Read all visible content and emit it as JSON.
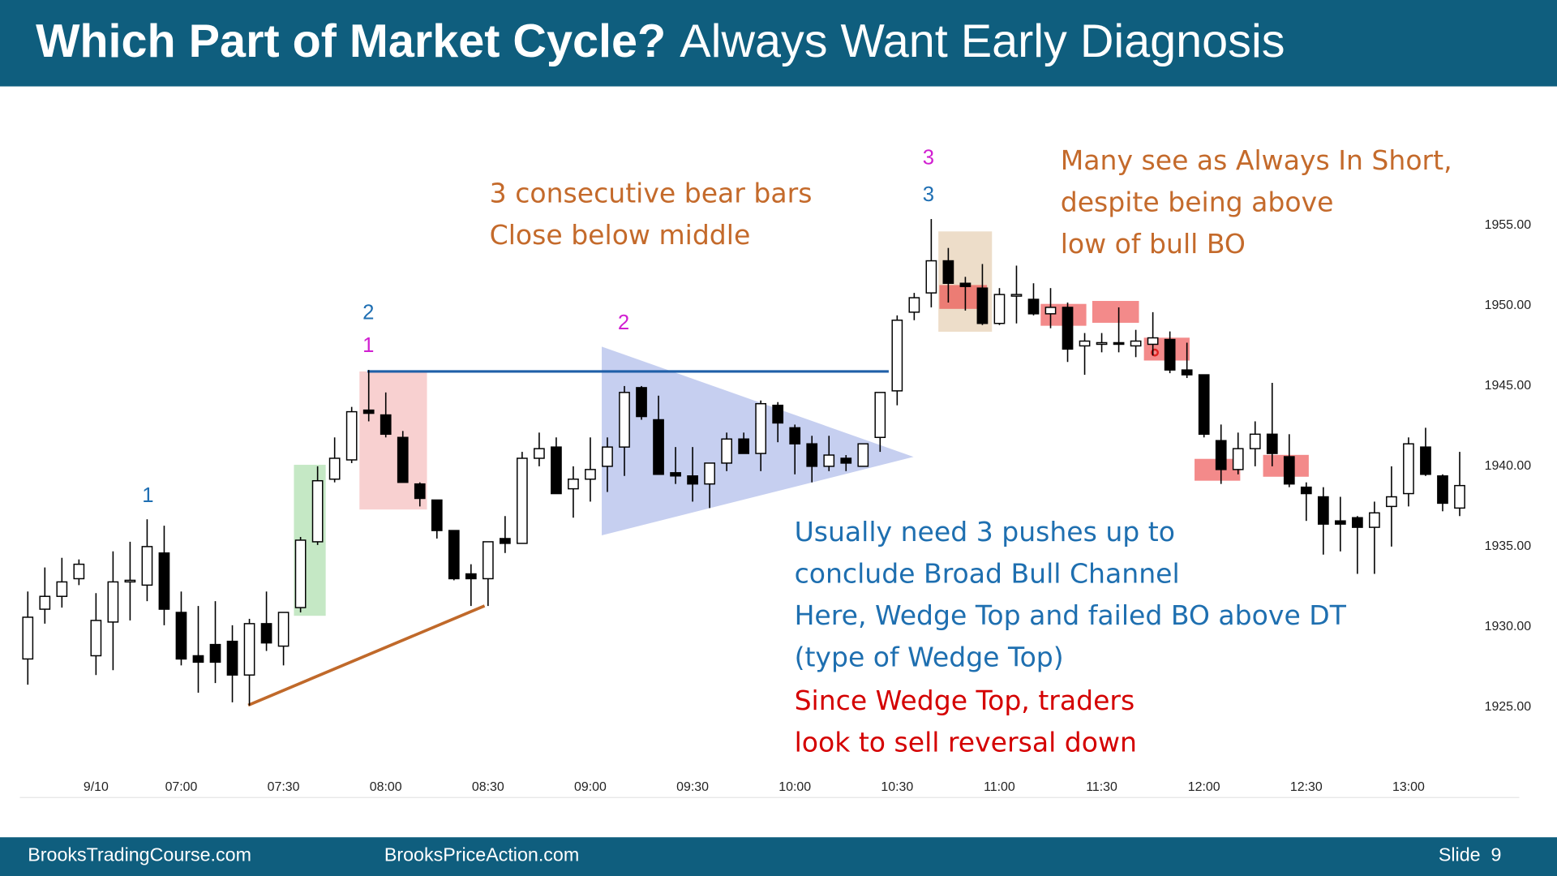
{
  "chart_data": {
    "type": "candlestick",
    "title": {
      "bold": "Which Part of Market Cycle?",
      "regular": "Always Want Early Diagnosis"
    },
    "categories": [
      null,
      null,
      null,
      null,
      "9/10",
      null,
      null,
      null,
      null,
      "07:00",
      null,
      null,
      null,
      null,
      null,
      "07:30",
      null,
      null,
      null,
      null,
      null,
      "08:00",
      null,
      null,
      null,
      null,
      null,
      "08:30",
      null,
      null,
      null,
      null,
      null,
      "09:00",
      null,
      null,
      null,
      null,
      null,
      "09:30",
      null,
      null,
      null,
      null,
      null,
      "10:00",
      null,
      null,
      null,
      null,
      null,
      "10:30",
      null,
      null,
      null,
      null,
      null,
      "11:00",
      null,
      null,
      null,
      null,
      null,
      "11:30",
      null,
      null,
      null,
      null,
      null,
      "12:00",
      null,
      null,
      null,
      null,
      null,
      "12:30",
      null,
      null,
      null,
      null,
      null,
      "13:00",
      null,
      null,
      null
    ],
    "open": [
      1928.0,
      1931.1,
      1931.9,
      1933.0,
      1928.2,
      1930.3,
      1932.8,
      1932.6,
      1934.6,
      1930.9,
      1928.2,
      1928.9,
      1929.1,
      1927.0,
      1930.2,
      1928.8,
      1931.2,
      1935.3,
      1939.2,
      1940.4,
      1943.5,
      1943.2,
      1941.8,
      1938.9,
      1937.9,
      1936.0,
      1933.3,
      1933.0,
      1935.5,
      1935.2,
      1940.5,
      1941.2,
      1938.6,
      1939.2,
      1940.0,
      1941.2,
      1944.9,
      1942.9,
      1939.6,
      1939.4,
      1938.9,
      1940.2,
      1941.7,
      1940.8,
      1943.8,
      1942.4,
      1941.4,
      1940.0,
      1940.5,
      1940.0,
      1941.8,
      1944.7,
      1949.6,
      1950.8,
      1952.8,
      1951.4,
      1951.1,
      1948.9,
      1950.6,
      1950.4,
      1949.5,
      1949.9,
      1947.5,
      1947.6,
      1947.7,
      1947.5,
      1947.6,
      1947.9,
      1946.0,
      1945.7,
      1941.6,
      1939.8,
      1941.1,
      1942.0,
      1940.6,
      1938.7,
      1938.1,
      1936.6,
      1936.8,
      1936.2,
      1937.5,
      1938.3,
      1941.2,
      1939.4,
      1937.4
    ],
    "high": [
      1932.2,
      1933.7,
      1934.3,
      1934.2,
      1932.1,
      1934.7,
      1935.3,
      1936.7,
      1936.3,
      1932.2,
      1931.3,
      1931.6,
      1930.1,
      1930.5,
      1932.2,
      1930.9,
      1935.6,
      1940.0,
      1941.8,
      1943.7,
      1946.0,
      1944.6,
      1942.2,
      1939.0,
      1937.9,
      1936.0,
      1933.9,
      1935.3,
      1936.9,
      1940.9,
      1942.1,
      1941.8,
      1940.0,
      1941.8,
      1941.8,
      1945.0,
      1945.0,
      1944.4,
      1941.2,
      1941.2,
      1940.2,
      1942.1,
      1942.1,
      1944.1,
      1944.0,
      1942.6,
      1941.9,
      1941.9,
      1940.7,
      1941.4,
      1944.6,
      1949.4,
      1950.8,
      1955.4,
      1953.6,
      1951.8,
      1952.6,
      1951.1,
      1952.5,
      1951.4,
      1951.1,
      1950.2,
      1948.3,
      1948.3,
      1949.9,
      1948.5,
      1949.6,
      1948.4,
      1947.7,
      1945.7,
      1942.6,
      1942.1,
      1942.8,
      1945.2,
      1942.0,
      1939.0,
      1938.7,
      1938.1,
      1936.9,
      1937.8,
      1940.0,
      1941.8,
      1942.4,
      1939.5,
      1940.9
    ],
    "low": [
      1926.4,
      1930.2,
      1931.2,
      1932.6,
      1927.0,
      1927.3,
      1930.4,
      1931.6,
      1930.1,
      1927.6,
      1925.9,
      1926.5,
      1925.3,
      1925.1,
      1928.5,
      1927.6,
      1930.9,
      1935.1,
      1939.0,
      1940.2,
      1942.8,
      1941.8,
      1939.0,
      1937.5,
      1935.5,
      1932.9,
      1931.3,
      1931.3,
      1934.6,
      1935.2,
      1940.0,
      1938.3,
      1936.8,
      1937.8,
      1938.4,
      1939.4,
      1942.9,
      1939.5,
      1938.9,
      1937.8,
      1937.4,
      1939.7,
      1940.8,
      1939.7,
      1941.5,
      1939.5,
      1939.0,
      1939.7,
      1939.7,
      1940.0,
      1940.9,
      1943.8,
      1949.1,
      1949.9,
      1950.2,
      1949.7,
      1948.8,
      1948.8,
      1948.9,
      1949.4,
      1948.6,
      1946.5,
      1945.7,
      1947.1,
      1947.1,
      1946.8,
      1946.9,
      1945.8,
      1945.5,
      1941.8,
      1938.9,
      1939.5,
      1940.0,
      1940.0,
      1938.7,
      1936.6,
      1934.5,
      1934.7,
      1933.3,
      1933.3,
      1935.0,
      1937.5,
      1939.4,
      1937.2,
      1936.9
    ],
    "close": [
      1930.6,
      1931.9,
      1932.8,
      1933.9,
      1930.4,
      1932.8,
      1932.9,
      1935.0,
      1931.1,
      1928.0,
      1927.8,
      1927.8,
      1927.0,
      1930.2,
      1929.0,
      1930.9,
      1935.4,
      1939.1,
      1940.5,
      1943.4,
      1943.3,
      1942.0,
      1939.0,
      1938.0,
      1936.0,
      1933.0,
      1933.0,
      1935.3,
      1935.2,
      1940.5,
      1941.1,
      1938.3,
      1939.2,
      1939.8,
      1941.2,
      1944.6,
      1943.1,
      1939.5,
      1939.4,
      1938.9,
      1940.2,
      1941.7,
      1940.8,
      1943.9,
      1942.7,
      1941.4,
      1940.0,
      1940.7,
      1940.2,
      1941.4,
      1944.6,
      1949.1,
      1950.5,
      1952.8,
      1951.4,
      1951.2,
      1948.9,
      1950.7,
      1950.7,
      1949.5,
      1949.9,
      1947.3,
      1947.8,
      1947.7,
      1947.6,
      1947.8,
      1948.0,
      1946.0,
      1945.7,
      1942.0,
      1939.8,
      1941.1,
      1942.0,
      1940.8,
      1938.9,
      1938.3,
      1936.4,
      1936.4,
      1936.2,
      1937.1,
      1938.1,
      1941.4,
      1939.5,
      1937.7,
      1938.8
    ],
    "up_color": "#ffffff",
    "down_color": "#000000",
    "ylim": [
      1920,
      1960
    ],
    "yticks": [
      {
        "value": 1925,
        "label": "1925.00"
      },
      {
        "value": 1930,
        "label": "1930.00"
      },
      {
        "value": 1935,
        "label": "1935.00"
      },
      {
        "value": 1940,
        "label": "1940.00"
      },
      {
        "value": 1945,
        "label": "1945.00"
      },
      {
        "value": 1950,
        "label": "1950.00"
      },
      {
        "value": 1955,
        "label": "1955.00"
      }
    ],
    "push_labels": [
      {
        "text": "1",
        "color": "#1f6fb3"
      },
      {
        "text": "2",
        "color": "#1f6fb3"
      },
      {
        "text": "1",
        "color": "#d11fd1"
      },
      {
        "text": "2",
        "color": "#d11fd1"
      },
      {
        "text": "3",
        "color": "#d11fd1"
      },
      {
        "text": "3",
        "color": "#1f6fb3"
      }
    ],
    "annotations": [
      {
        "color": "#c46a2b",
        "lines": [
          "3 consecutive bear bars",
          "Close below middle"
        ]
      },
      {
        "color": "#c46a2b",
        "lines": [
          "Many see as Always In Short,",
          "despite being above",
          "low of bull BO"
        ]
      },
      {
        "color": "#1e6fb0",
        "lines": [
          "Usually need 3 pushes up to",
          "conclude Broad Bull Channel",
          "Here, Wedge Top and failed BO above DT",
          "(type of Wedge Top)"
        ]
      },
      {
        "color": "#d40000",
        "lines": [
          "Since Wedge Top, traders",
          "look to sell reversal down"
        ]
      }
    ]
  },
  "footer": {
    "left": "BrooksTradingCourse.com",
    "middle": "BrooksPriceAction.com",
    "slide": "Slide  9"
  }
}
